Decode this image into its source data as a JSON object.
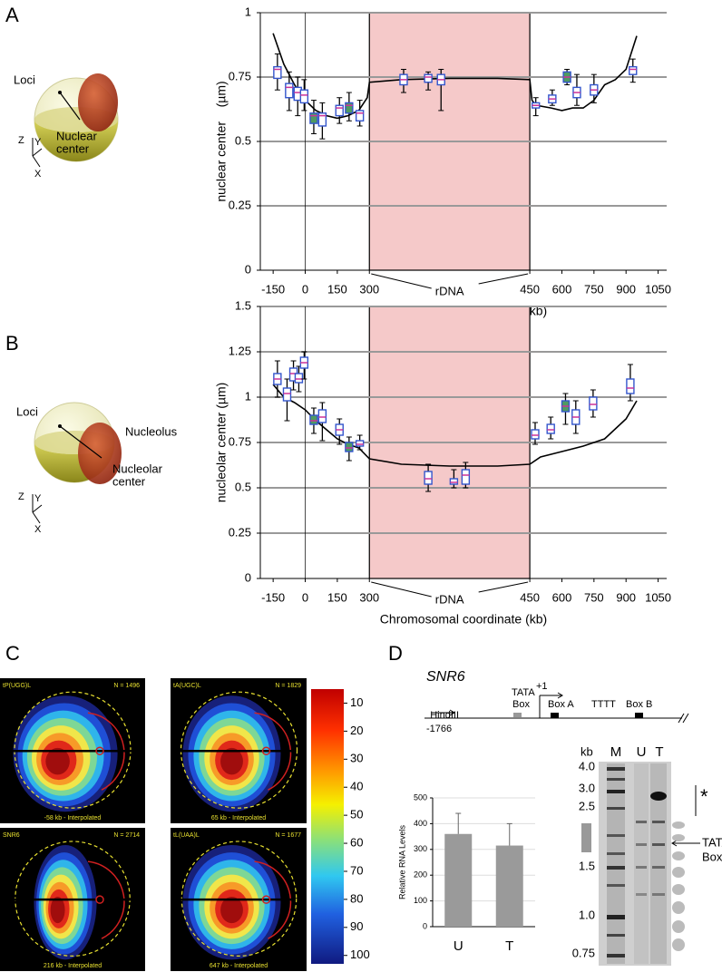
{
  "panel_labels": [
    "A",
    "B",
    "C",
    "D"
  ],
  "chart_data": [
    {
      "type": "box",
      "ylabel": "nuclear center    (µm)",
      "xlabel": "Chromosomal coordinate (kb)",
      "xlim": [
        -210,
        1090
      ],
      "xticks": [
        -150,
        0,
        150,
        300,
        450,
        600,
        750,
        900,
        1050
      ],
      "ylim": [
        0,
        1
      ],
      "yticks": [
        0,
        0.25,
        0.5,
        0.75,
        1
      ],
      "grid": true,
      "highlight_range": [
        300,
        450
      ],
      "highlight_label": "rDNA",
      "highlight_color": "#f5c9c9",
      "box_color": "#3355cc",
      "median_color": "#cc3399",
      "boxes": {
        "x": [
          -130,
          -75,
          -35,
          -5,
          40,
          80,
          160,
          205,
          255,
          332,
          355,
          367,
          478,
          555,
          624,
          670,
          750,
          932
        ],
        "low": [
          0.7,
          0.62,
          0.6,
          0.62,
          0.53,
          0.51,
          0.57,
          0.58,
          0.56,
          0.69,
          0.7,
          0.62,
          0.6,
          0.64,
          0.72,
          0.64,
          0.65,
          0.73
        ],
        "q1": [
          0.745,
          0.67,
          0.66,
          0.65,
          0.57,
          0.56,
          0.6,
          0.61,
          0.58,
          0.72,
          0.73,
          0.72,
          0.63,
          0.65,
          0.73,
          0.67,
          0.68,
          0.76
        ],
        "median": [
          0.78,
          0.71,
          0.69,
          0.68,
          0.6,
          0.6,
          0.63,
          0.64,
          0.61,
          0.74,
          0.75,
          0.74,
          0.64,
          0.665,
          0.75,
          0.69,
          0.7,
          0.78
        ],
        "q3": [
          0.79,
          0.725,
          0.71,
          0.7,
          0.61,
          0.61,
          0.64,
          0.65,
          0.62,
          0.76,
          0.76,
          0.76,
          0.65,
          0.68,
          0.77,
          0.71,
          0.72,
          0.79
        ],
        "high": [
          0.84,
          0.77,
          0.75,
          0.74,
          0.66,
          0.65,
          0.67,
          0.69,
          0.66,
          0.78,
          0.77,
          0.78,
          0.67,
          0.7,
          0.78,
          0.76,
          0.76,
          0.82
        ],
        "fills": [
          "#ffffff",
          "#ffffff",
          "#ffffff",
          "#ffffff",
          "#4f9a62",
          "#ffffff",
          "#ffffff",
          "#4f9a62",
          "#ffffff",
          "#ffffff",
          "#ffffff",
          "#ffffff",
          "#ffffff",
          "#ffffff",
          "#4f9a62",
          "#ffffff",
          "#ffffff",
          "#ffffff"
        ]
      },
      "curve": {
        "color": "#000000",
        "x": [
          -150,
          -100,
          -50,
          0,
          50,
          100,
          150,
          200,
          250,
          290,
          300,
          330,
          375,
          420,
          450,
          460,
          480,
          550,
          600,
          650,
          700,
          750,
          800,
          850,
          900,
          950
        ],
        "y": [
          0.92,
          0.8,
          0.72,
          0.66,
          0.62,
          0.6,
          0.59,
          0.6,
          0.62,
          0.67,
          0.73,
          0.74,
          0.745,
          0.745,
          0.74,
          0.66,
          0.64,
          0.63,
          0.62,
          0.63,
          0.63,
          0.66,
          0.72,
          0.74,
          0.78,
          0.91
        ]
      }
    },
    {
      "type": "box",
      "ylabel": "nucleolar center (µm)",
      "xlabel": "Chromosomal coordinate (kb)",
      "xlim": [
        -210,
        1090
      ],
      "xticks": [
        -150,
        0,
        150,
        300,
        450,
        600,
        750,
        900,
        1050
      ],
      "ylim": [
        0,
        1.5
      ],
      "yticks": [
        0,
        0.25,
        0.5,
        0.75,
        1,
        1.25,
        1.5
      ],
      "grid": true,
      "highlight_range": [
        300,
        450
      ],
      "highlight_label": "rDNA",
      "highlight_color": "#f5c9c9",
      "box_color": "#3355cc",
      "median_color": "#cc3399",
      "boxes": {
        "x": [
          -130,
          -85,
          -55,
          -30,
          -5,
          40,
          80,
          160,
          205,
          255,
          355,
          379,
          390,
          475,
          548,
          617,
          665,
          746,
          920
        ],
        "low": [
          1.0,
          0.87,
          1.04,
          1.03,
          1.1,
          0.8,
          0.76,
          0.74,
          0.65,
          0.71,
          0.48,
          0.5,
          0.5,
          0.74,
          0.77,
          0.85,
          0.8,
          0.89,
          0.98
        ],
        "q1": [
          1.07,
          0.98,
          1.09,
          1.08,
          1.16,
          0.85,
          0.86,
          0.79,
          0.7,
          0.73,
          0.52,
          0.52,
          0.52,
          0.77,
          0.8,
          0.92,
          0.85,
          0.93,
          1.02
        ],
        "median": [
          1.1,
          1.02,
          1.13,
          1.1,
          1.19,
          0.87,
          0.89,
          0.82,
          0.72,
          0.74,
          0.55,
          0.53,
          0.57,
          0.79,
          0.82,
          0.95,
          0.89,
          0.96,
          1.05
        ],
        "q3": [
          1.13,
          1.05,
          1.16,
          1.13,
          1.22,
          0.9,
          0.93,
          0.85,
          0.75,
          0.76,
          0.59,
          0.55,
          0.6,
          0.82,
          0.85,
          0.98,
          0.93,
          1.0,
          1.1
        ],
        "high": [
          1.2,
          1.1,
          1.2,
          1.17,
          1.25,
          0.94,
          0.97,
          0.88,
          0.78,
          0.79,
          0.63,
          0.6,
          0.64,
          0.86,
          0.89,
          1.02,
          0.98,
          1.04,
          1.18
        ],
        "fills": [
          "#ffffff",
          "#ffffff",
          "#ffffff",
          "#ffffff",
          "#ffffff",
          "#4f9a62",
          "#ffffff",
          "#ffffff",
          "#4f9a62",
          "#ffffff",
          "#ffffff",
          "#ffffff",
          "#ffffff",
          "#ffffff",
          "#ffffff",
          "#4f9a62",
          "#ffffff",
          "#ffffff",
          "#ffffff"
        ]
      },
      "curve": {
        "color": "#000000",
        "x": [
          -150,
          -100,
          -50,
          0,
          50,
          100,
          150,
          200,
          250,
          300,
          330,
          375,
          420,
          450,
          500,
          600,
          700,
          800,
          900,
          950
        ],
        "y": [
          1.07,
          1.0,
          0.97,
          0.93,
          0.87,
          0.82,
          0.77,
          0.74,
          0.72,
          0.66,
          0.63,
          0.62,
          0.62,
          0.63,
          0.67,
          0.7,
          0.73,
          0.77,
          0.88,
          0.98
        ]
      }
    },
    {
      "type": "bar",
      "ylabel": "Relative RNA Levels",
      "categories": [
        "U",
        "T"
      ],
      "values": [
        360,
        315
      ],
      "errors": [
        80,
        85
      ],
      "color": "#9a9a9a",
      "ylim": [
        0,
        500
      ],
      "yticks": [
        0,
        100,
        200,
        300,
        400,
        500
      ],
      "grid": true
    }
  ],
  "sphere_A": {
    "loci": "Loci",
    "center": [
      "Nuclear",
      "center"
    ],
    "axes": [
      "Z",
      "Y",
      "X"
    ]
  },
  "sphere_B": {
    "loci": "Loci",
    "nucleolus": "Nucleolus",
    "center": [
      "Nucleolar",
      "center"
    ],
    "axes": [
      "Z",
      "Y",
      "X"
    ]
  },
  "heatmaps": [
    {
      "title": "tP(UGG)L",
      "n": "N = 1496",
      "caption": "-58 kb - Interpolated"
    },
    {
      "title": "tA(UGC)L",
      "n": "N = 1829",
      "caption": "65 kb - Interpolated"
    },
    {
      "title": "SNR6",
      "n": "N = 2714",
      "caption": "216 kb - Interpolated"
    },
    {
      "title": "tL(UAA)L",
      "n": "N = 1677",
      "caption": "647 kb - Interpolated"
    }
  ],
  "colorbar": {
    "lim": [
      5,
      103
    ],
    "ticks": [
      10,
      20,
      30,
      40,
      50,
      60,
      70,
      80,
      90,
      100
    ]
  },
  "gene_diagram": {
    "gene": "SNR6",
    "tata": [
      "TATA",
      "Box"
    ],
    "tss": "+1",
    "box_a": "Box A",
    "tttt": "TTTT",
    "box_b": "Box B",
    "site": "HindIII",
    "position": "-1766"
  },
  "gel": {
    "unit": "kb",
    "lanes": [
      "M",
      "U",
      "T"
    ],
    "sizes": [
      "4.0",
      "3.0",
      "2.5",
      "1.5",
      "1.0",
      "0.75"
    ],
    "star": "*",
    "tata": [
      "TATA",
      "Box"
    ]
  }
}
